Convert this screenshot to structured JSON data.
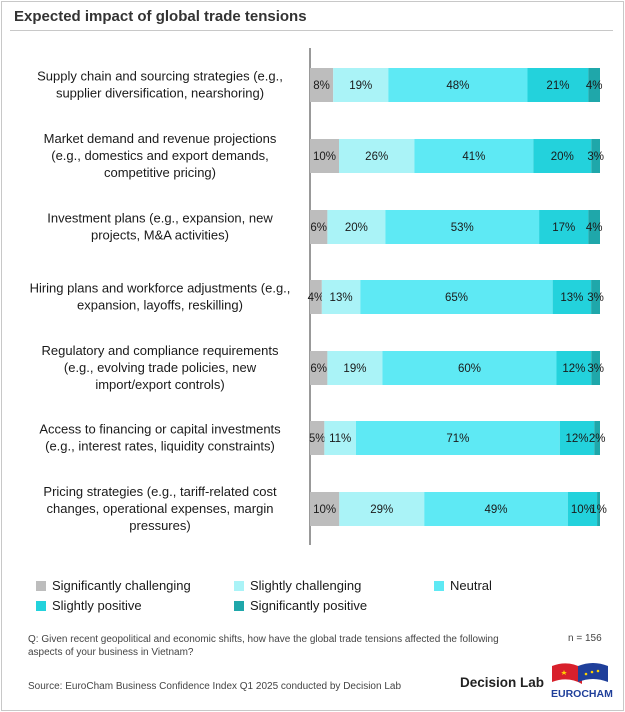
{
  "title": "Expected impact of global trade tensions",
  "colors": {
    "significantly_challenging": "#bdbdbd",
    "slightly_challenging": "#aaf3f7",
    "neutral": "#5ee9f4",
    "slightly_positive": "#23d2dc",
    "significantly_positive": "#1fa7aa",
    "axis": "#333333"
  },
  "chart_data": {
    "type": "bar",
    "orientation": "horizontal",
    "stacked": true,
    "percent": true,
    "categories": [
      [
        "Supply chain and sourcing strategies (e.g.,",
        "supplier diversification, nearshoring)"
      ],
      [
        "Market demand and revenue projections",
        "(e.g., domestics and export demands,",
        "competitive pricing)"
      ],
      [
        "Investment plans (e.g., expansion, new",
        "projects, M&A activities)"
      ],
      [
        "Hiring plans and workforce adjustments (e.g.,",
        "expansion, layoffs, reskilling)"
      ],
      [
        "Regulatory and compliance requirements",
        "(e.g., evolving trade policies, new",
        "import/export controls)"
      ],
      [
        "Access to financing or capital investments",
        "(e.g., interest rates, liquidity constraints)"
      ],
      [
        "Pricing strategies (e.g., tariff-related cost",
        "changes, operational expenses, margin",
        "pressures)"
      ]
    ],
    "series": [
      {
        "name": "Significantly challenging",
        "key": "significantly_challenging",
        "values": [
          8,
          10,
          6,
          4,
          6,
          5,
          10
        ]
      },
      {
        "name": "Slightly challenging",
        "key": "slightly_challenging",
        "values": [
          19,
          26,
          20,
          13,
          19,
          11,
          29
        ]
      },
      {
        "name": "Neutral",
        "key": "neutral",
        "values": [
          48,
          41,
          53,
          65,
          60,
          71,
          49
        ]
      },
      {
        "name": "Slightly positive",
        "key": "slightly_positive",
        "values": [
          21,
          20,
          17,
          13,
          12,
          12,
          10
        ]
      },
      {
        "name": "Significantly positive",
        "key": "significantly_positive",
        "values": [
          4,
          3,
          4,
          3,
          3,
          2,
          1
        ]
      }
    ],
    "legend_position": "bottom-left"
  },
  "footer": {
    "question": "Q: Given recent geopolitical and economic shifts, how have the global trade tensions affected the following aspects of your business in Vietnam?",
    "n": "n = 156",
    "source": "Source: EuroCham Business Confidence Index Q1 2025 conducted by Decision Lab",
    "brand": "Decision Lab",
    "logo_text": "EUROCHAM"
  }
}
